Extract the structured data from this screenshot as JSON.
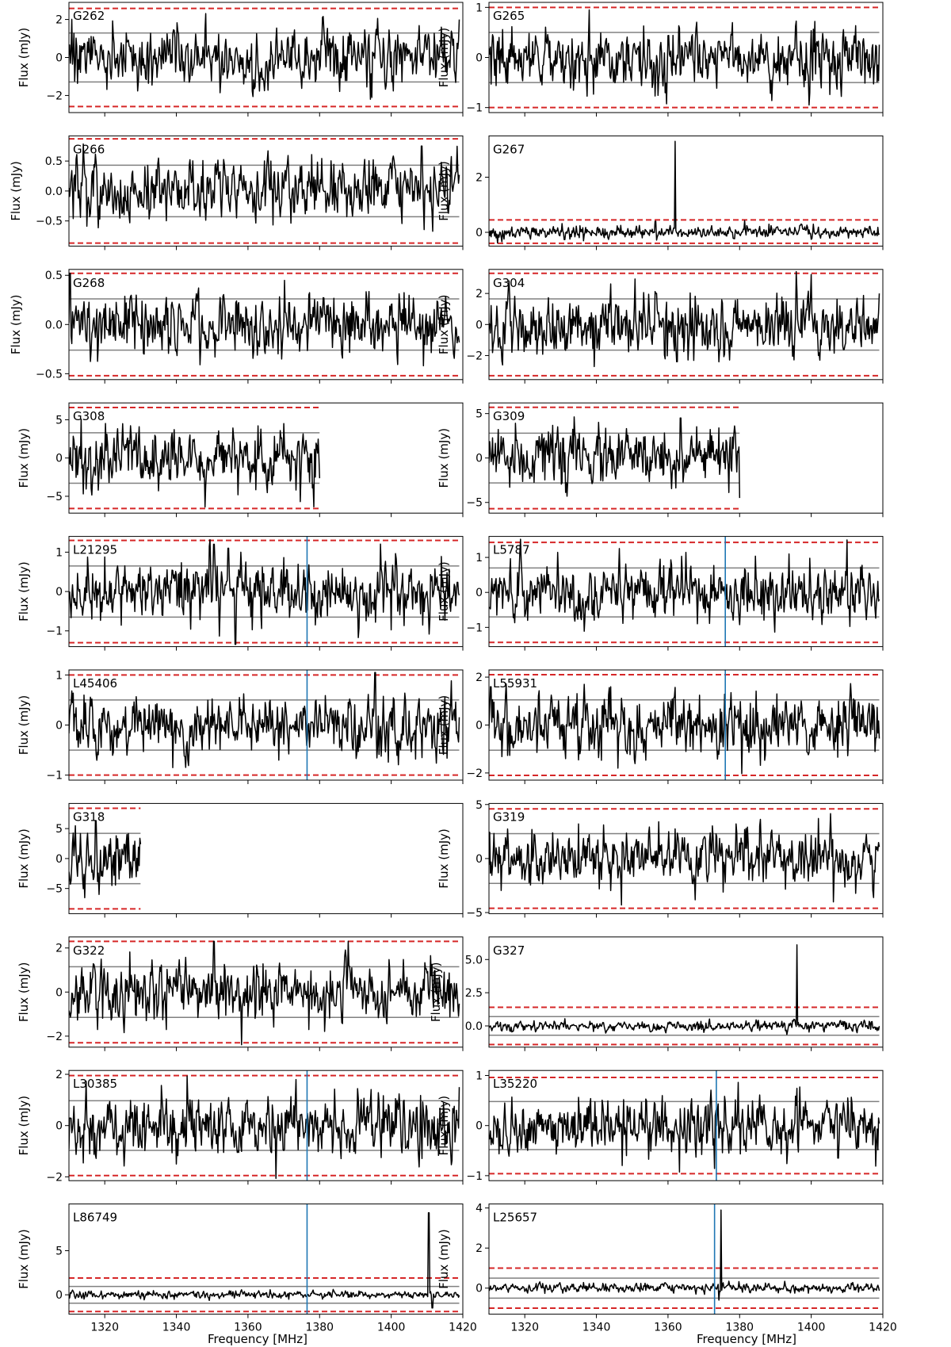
{
  "figure": {
    "xlabel": "Frequency [MHz]",
    "xlim": [
      1310,
      1420
    ],
    "xticks": [
      1320,
      1340,
      1360,
      1380,
      1400,
      1420
    ]
  },
  "colors": {
    "spectrum": "#000000",
    "sigma_line": "#808080",
    "threshold": "#d62728",
    "marker": "#1f77b4",
    "frame": "#000000"
  },
  "chart_data": [
    {
      "type": "line",
      "label": "G262",
      "ylabel": "Flux (mJy)",
      "ylim": [
        -2.9,
        2.9
      ],
      "yticks": [
        -2,
        0,
        2
      ],
      "ytick_labels": [
        "−2",
        "0",
        "2"
      ],
      "x_range": [
        1310,
        1419
      ],
      "noise_sigma": 1.29,
      "sigma_lines": [
        1.29,
        -1.29
      ],
      "threshold_lines": [
        2.58,
        -2.58
      ],
      "markers": [],
      "spikes": [
        [
          1394.2,
          -2.2
        ],
        [
          1419,
          2.0
        ]
      ],
      "seed": 11
    },
    {
      "type": "line",
      "label": "G265",
      "ylabel": "Flux (mJy)",
      "ylim": [
        -1.1,
        1.1
      ],
      "yticks": [
        -1,
        0,
        1
      ],
      "ytick_labels": [
        "−1",
        "0",
        "1"
      ],
      "x_range": [
        1310,
        1419
      ],
      "noise_sigma": 0.5,
      "sigma_lines": [
        0.5,
        -0.5
      ],
      "threshold_lines": [
        1.0,
        -1.0
      ],
      "markers": [],
      "spikes": [
        [
          1338,
          0.95
        ]
      ],
      "seed": 12
    },
    {
      "type": "line",
      "label": "G266",
      "ylabel": "Flux (mJy)",
      "ylim": [
        -0.92,
        0.92
      ],
      "yticks": [
        -0.5,
        0.0,
        0.5
      ],
      "ytick_labels": [
        "−0.5",
        "0.0",
        "0.5"
      ],
      "x_range": [
        1310,
        1419
      ],
      "noise_sigma": 0.43,
      "sigma_lines": [
        0.43,
        -0.43
      ],
      "threshold_lines": [
        0.87,
        -0.87
      ],
      "markers": [],
      "spikes": [
        [
          1408.5,
          0.75
        ]
      ],
      "seed": 13
    },
    {
      "type": "line",
      "label": "G267",
      "ylabel": "Flux (mJy)",
      "ylim": [
        -0.5,
        3.5
      ],
      "yticks": [
        0,
        2
      ],
      "ytick_labels": [
        "0",
        "2"
      ],
      "x_range": [
        1310,
        1419
      ],
      "noise_sigma": 0.2,
      "sigma_lines": [],
      "threshold_lines": [
        0.45,
        -0.4
      ],
      "markers": [],
      "spikes": [
        [
          1362,
          3.3
        ],
        [
          1356.5,
          0.4
        ]
      ],
      "seed": 14
    },
    {
      "type": "line",
      "label": "G268",
      "ylabel": "Flux (mJy)",
      "ylim": [
        -0.56,
        0.56
      ],
      "yticks": [
        -0.5,
        0.0,
        0.5
      ],
      "ytick_labels": [
        "−0.5",
        "0.0",
        "0.5"
      ],
      "x_range": [
        1310,
        1419
      ],
      "noise_sigma": 0.26,
      "sigma_lines": [
        0.26,
        -0.26
      ],
      "threshold_lines": [
        0.52,
        -0.52
      ],
      "markers": [],
      "spikes": [
        [
          1310.3,
          0.52
        ],
        [
          1409,
          -0.42
        ]
      ],
      "seed": 15
    },
    {
      "type": "line",
      "label": "G304",
      "ylabel": "Flux (mJy)",
      "ylim": [
        -3.55,
        3.55
      ],
      "yticks": [
        -2,
        0,
        2
      ],
      "ytick_labels": [
        "−2",
        "0",
        "2"
      ],
      "x_range": [
        1310,
        1419
      ],
      "noise_sigma": 1.65,
      "sigma_lines": [
        1.65,
        -1.65
      ],
      "threshold_lines": [
        3.3,
        -3.3
      ],
      "markers": [],
      "spikes": [
        [
          1362.5,
          -2.4
        ],
        [
          1419,
          2.0
        ]
      ],
      "seed": 16
    },
    {
      "type": "line",
      "label": "G308",
      "ylabel": "Flux (mJy)",
      "ylim": [
        -7.2,
        7.2
      ],
      "yticks": [
        -5,
        0,
        5
      ],
      "ytick_labels": [
        "−5",
        "0",
        "5"
      ],
      "x_range": [
        1310,
        1380
      ],
      "noise_sigma": 3.3,
      "sigma_lines": [
        3.3,
        -3.3
      ],
      "threshold_lines": [
        6.6,
        -6.6
      ],
      "markers": [],
      "spikes": [
        [
          1348,
          -6.4
        ],
        [
          1370,
          4.5
        ]
      ],
      "seed": 17
    },
    {
      "type": "line",
      "label": "G309",
      "ylabel": "Flux (mJy)",
      "ylim": [
        -6.2,
        6.2
      ],
      "yticks": [
        -5,
        0,
        5
      ],
      "ytick_labels": [
        "−5",
        "0",
        "5"
      ],
      "x_range": [
        1310,
        1380
      ],
      "noise_sigma": 2.8,
      "sigma_lines": [
        2.8,
        -2.8
      ],
      "threshold_lines": [
        5.7,
        -5.7
      ],
      "markers": [],
      "spikes": [
        [
          1363.5,
          4.5
        ],
        [
          1380,
          -4.5
        ]
      ],
      "seed": 18
    },
    {
      "type": "line",
      "label": "L21295",
      "ylabel": "Flux (mJy)",
      "ylim": [
        -1.4,
        1.4
      ],
      "yticks": [
        -1,
        0,
        1
      ],
      "ytick_labels": [
        "−1",
        "0",
        "1"
      ],
      "x_range": [
        1310,
        1419
      ],
      "noise_sigma": 0.65,
      "sigma_lines": [
        0.65,
        -0.65
      ],
      "threshold_lines": [
        1.3,
        -1.3
      ],
      "markers": [
        1376.5
      ],
      "spikes": [
        [
          1350.5,
          1.2
        ],
        [
          1354.5,
          1.1
        ],
        [
          1356.5,
          -1.55
        ]
      ],
      "seed": 19
    },
    {
      "type": "line",
      "label": "L5787",
      "ylabel": "Flux (mJy)",
      "ylim": [
        -1.55,
        1.6
      ],
      "yticks": [
        -1,
        0,
        1
      ],
      "ytick_labels": [
        "−1",
        "0",
        "1"
      ],
      "x_range": [
        1310,
        1419
      ],
      "noise_sigma": 0.7,
      "sigma_lines": [
        0.7,
        -0.7
      ],
      "threshold_lines": [
        1.43,
        -1.43
      ],
      "markers": [
        1376
      ],
      "spikes": [
        [
          1410,
          1.5
        ]
      ],
      "seed": 20
    },
    {
      "type": "line",
      "label": "L45406",
      "ylabel": "Flux (mJy)",
      "ylim": [
        -1.1,
        1.1
      ],
      "yticks": [
        -1,
        0,
        1
      ],
      "ytick_labels": [
        "−1",
        "0",
        "1"
      ],
      "x_range": [
        1310,
        1419
      ],
      "noise_sigma": 0.5,
      "sigma_lines": [
        0.5,
        -0.5
      ],
      "threshold_lines": [
        1.0,
        -1.0
      ],
      "markers": [
        1376.5
      ],
      "spikes": [
        [
          1395.5,
          1.05
        ],
        [
          1339,
          -0.85
        ]
      ],
      "seed": 21
    },
    {
      "type": "line",
      "label": "L55931",
      "ylabel": "Flux (mJy)",
      "ylim": [
        -2.3,
        2.3
      ],
      "yticks": [
        -2,
        0,
        2
      ],
      "ytick_labels": [
        "−2",
        "0",
        "2"
      ],
      "x_range": [
        1310,
        1419
      ],
      "noise_sigma": 1.05,
      "sigma_lines": [
        1.05,
        -1.05
      ],
      "threshold_lines": [
        2.1,
        -2.1
      ],
      "markers": [
        1376
      ],
      "spikes": [
        [
          1310.5,
          1.6
        ],
        [
          1344,
          1.6
        ],
        [
          1346,
          -1.8
        ]
      ],
      "seed": 22
    },
    {
      "type": "line",
      "label": "G318",
      "ylabel": "Flux (mJy)",
      "ylim": [
        -9.2,
        9.2
      ],
      "yticks": [
        -5,
        0,
        5
      ],
      "ytick_labels": [
        "−5",
        "0",
        "5"
      ],
      "x_range": [
        1310,
        1330
      ],
      "noise_sigma": 4.2,
      "sigma_lines": [
        4.2,
        -4.2
      ],
      "threshold_lines": [
        8.4,
        -8.4
      ],
      "markers": [],
      "spikes": [
        [
          1317.5,
          6.3
        ],
        [
          1322,
          -4.5
        ]
      ],
      "seed": 23
    },
    {
      "type": "line",
      "label": "G319",
      "ylabel": "Flux (mJy)",
      "ylim": [
        -5.1,
        5.1
      ],
      "yticks": [
        -5,
        0,
        5
      ],
      "ytick_labels": [
        "−5",
        "0",
        "5"
      ],
      "x_range": [
        1310,
        1419
      ],
      "noise_sigma": 2.3,
      "sigma_lines": [
        2.3,
        -2.3
      ],
      "threshold_lines": [
        4.6,
        -4.6
      ],
      "markers": [],
      "spikes": [
        [
          1347,
          -4.3
        ],
        [
          1335,
          3.2
        ]
      ],
      "seed": 24
    },
    {
      "type": "line",
      "label": "G322",
      "ylabel": "Flux (mJy)",
      "ylim": [
        -2.5,
        2.5
      ],
      "yticks": [
        -2,
        0,
        2
      ],
      "ytick_labels": [
        "−2",
        "0",
        "2"
      ],
      "x_range": [
        1310,
        1419
      ],
      "noise_sigma": 1.15,
      "sigma_lines": [
        1.15,
        -1.15
      ],
      "threshold_lines": [
        2.3,
        -2.3
      ],
      "markers": [],
      "spikes": [
        [
          1350.5,
          2.3
        ],
        [
          1377,
          -1.7
        ]
      ],
      "seed": 25
    },
    {
      "type": "line",
      "label": "G327",
      "ylabel": "Flux (mJy)",
      "ylim": [
        -1.6,
        6.7
      ],
      "yticks": [
        0.0,
        2.5,
        5.0
      ],
      "ytick_labels": [
        "0.0",
        "2.5",
        "5.0"
      ],
      "x_range": [
        1310,
        1419
      ],
      "noise_sigma": 0.33,
      "sigma_lines": [
        0.7,
        -0.7
      ],
      "threshold_lines": [
        1.4,
        -1.4
      ],
      "markers": [],
      "spikes": [
        [
          1396,
          6.1
        ]
      ],
      "seed": 26
    },
    {
      "type": "line",
      "label": "L30385",
      "ylabel": "Flux (mJy)",
      "ylim": [
        -2.15,
        2.15
      ],
      "yticks": [
        -2,
        0,
        2
      ],
      "ytick_labels": [
        "−2",
        "0",
        "2"
      ],
      "x_range": [
        1310,
        1419
      ],
      "noise_sigma": 0.97,
      "sigma_lines": [
        0.97,
        -0.97
      ],
      "threshold_lines": [
        1.95,
        -1.95
      ],
      "markers": [
        1376.5
      ],
      "spikes": [
        [
          1419,
          1.5
        ],
        [
          1340,
          -1.5
        ]
      ],
      "seed": 27
    },
    {
      "type": "line",
      "label": "L35220",
      "ylabel": "Flux (mJy)",
      "ylim": [
        -1.1,
        1.1
      ],
      "yticks": [
        -1,
        0,
        1
      ],
      "ytick_labels": [
        "−1",
        "0",
        "1"
      ],
      "x_range": [
        1310,
        1419
      ],
      "noise_sigma": 0.48,
      "sigma_lines": [
        0.48,
        -0.48
      ],
      "threshold_lines": [
        0.96,
        -0.96
      ],
      "markers": [
        1373.5
      ],
      "spikes": [
        [
          1407.5,
          -0.65
        ]
      ],
      "seed": 28
    },
    {
      "type": "line",
      "label": "L86749",
      "ylabel": "Flux (mJy)",
      "ylim": [
        -2.2,
        10.3
      ],
      "yticks": [
        0,
        5
      ],
      "ytick_labels": [
        "0",
        "5"
      ],
      "x_range": [
        1310,
        1419
      ],
      "noise_sigma": 0.35,
      "sigma_lines": [
        0.95,
        -0.95
      ],
      "threshold_lines": [
        1.9,
        -1.9
      ],
      "markers": [
        1376.5
      ],
      "spikes": [
        [
          1410.5,
          9.3
        ],
        [
          1411.5,
          -1.5
        ]
      ],
      "seed": 29
    },
    {
      "type": "line",
      "label": "L25657",
      "ylabel": "Flux (mJy)",
      "ylim": [
        -1.3,
        4.2
      ],
      "yticks": [
        0,
        2,
        4
      ],
      "ytick_labels": [
        "0",
        "2",
        "4"
      ],
      "x_range": [
        1310,
        1419
      ],
      "noise_sigma": 0.2,
      "sigma_lines": [
        0.5,
        -0.5
      ],
      "threshold_lines": [
        1.0,
        -1.0
      ],
      "markers": [
        1373
      ],
      "spikes": [
        [
          1374.8,
          3.9
        ],
        [
          1374.2,
          -0.6
        ]
      ],
      "seed": 30
    }
  ]
}
